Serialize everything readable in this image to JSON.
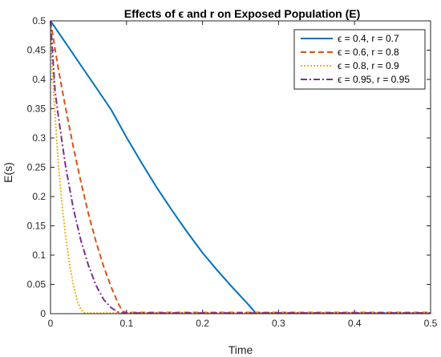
{
  "chart_data": {
    "type": "line",
    "title": "Effects of ϵ and r on Exposed Population (E)",
    "xlabel": "Time",
    "ylabel": "E(s)",
    "xlim": [
      0,
      0.5
    ],
    "ylim": [
      0,
      0.5
    ],
    "xticks": [
      "0",
      "0.1",
      "0.2",
      "0.3",
      "0.4",
      "0.5"
    ],
    "yticks": [
      "0",
      "0.05",
      "0.1",
      "0.15",
      "0.2",
      "0.25",
      "0.3",
      "0.35",
      "0.4",
      "0.45",
      "0.5"
    ],
    "grid": false,
    "legend_position": "top-right",
    "series": [
      {
        "name": "ϵ = 0.4, r = 0.7",
        "color": "#0072BD",
        "dash": "solid",
        "x": [
          0,
          0.02,
          0.04,
          0.06,
          0.08,
          0.1,
          0.12,
          0.14,
          0.16,
          0.18,
          0.2,
          0.22,
          0.24,
          0.26,
          0.27,
          0.3,
          0.4,
          0.5
        ],
        "y": [
          0.5,
          0.462,
          0.424,
          0.386,
          0.348,
          0.301,
          0.257,
          0.215,
          0.176,
          0.139,
          0.104,
          0.073,
          0.044,
          0.016,
          0.001,
          0.001,
          0.001,
          0.001
        ]
      },
      {
        "name": "ϵ = 0.6, r = 0.8",
        "color": "#D95319",
        "dash": "dashed",
        "x": [
          0,
          0.005,
          0.01,
          0.015,
          0.02,
          0.03,
          0.04,
          0.05,
          0.06,
          0.07,
          0.08,
          0.09,
          0.095,
          0.1,
          0.2,
          0.3,
          0.4,
          0.5
        ],
        "y": [
          0.5,
          0.46,
          0.42,
          0.385,
          0.35,
          0.285,
          0.225,
          0.17,
          0.122,
          0.08,
          0.045,
          0.015,
          0.004,
          0.002,
          0.002,
          0.002,
          0.002,
          0.002
        ]
      },
      {
        "name": "ϵ = 0.8, r = 0.9",
        "color": "#EDB120",
        "dash": "dotted",
        "x": [
          0,
          0.002,
          0.005,
          0.008,
          0.01,
          0.015,
          0.02,
          0.025,
          0.03,
          0.035,
          0.04,
          0.045,
          0.05,
          0.1,
          0.2,
          0.3,
          0.4,
          0.5
        ],
        "y": [
          0.5,
          0.43,
          0.36,
          0.3,
          0.26,
          0.19,
          0.13,
          0.085,
          0.05,
          0.022,
          0.007,
          0.001,
          0.001,
          0.001,
          0.001,
          0.001,
          0.001,
          0.001
        ]
      },
      {
        "name": "ϵ = 0.95, r = 0.95",
        "color": "#7E2F8E",
        "dash": "dashdot",
        "x": [
          0,
          0.003,
          0.006,
          0.01,
          0.015,
          0.02,
          0.03,
          0.04,
          0.05,
          0.06,
          0.07,
          0.08,
          0.09,
          0.095,
          0.1,
          0.2,
          0.3,
          0.4,
          0.5
        ],
        "y": [
          0.5,
          0.44,
          0.38,
          0.34,
          0.295,
          0.25,
          0.18,
          0.125,
          0.082,
          0.048,
          0.024,
          0.01,
          0.002,
          0.001,
          0.001,
          0.001,
          0.001,
          0.001,
          0.001
        ]
      }
    ]
  }
}
